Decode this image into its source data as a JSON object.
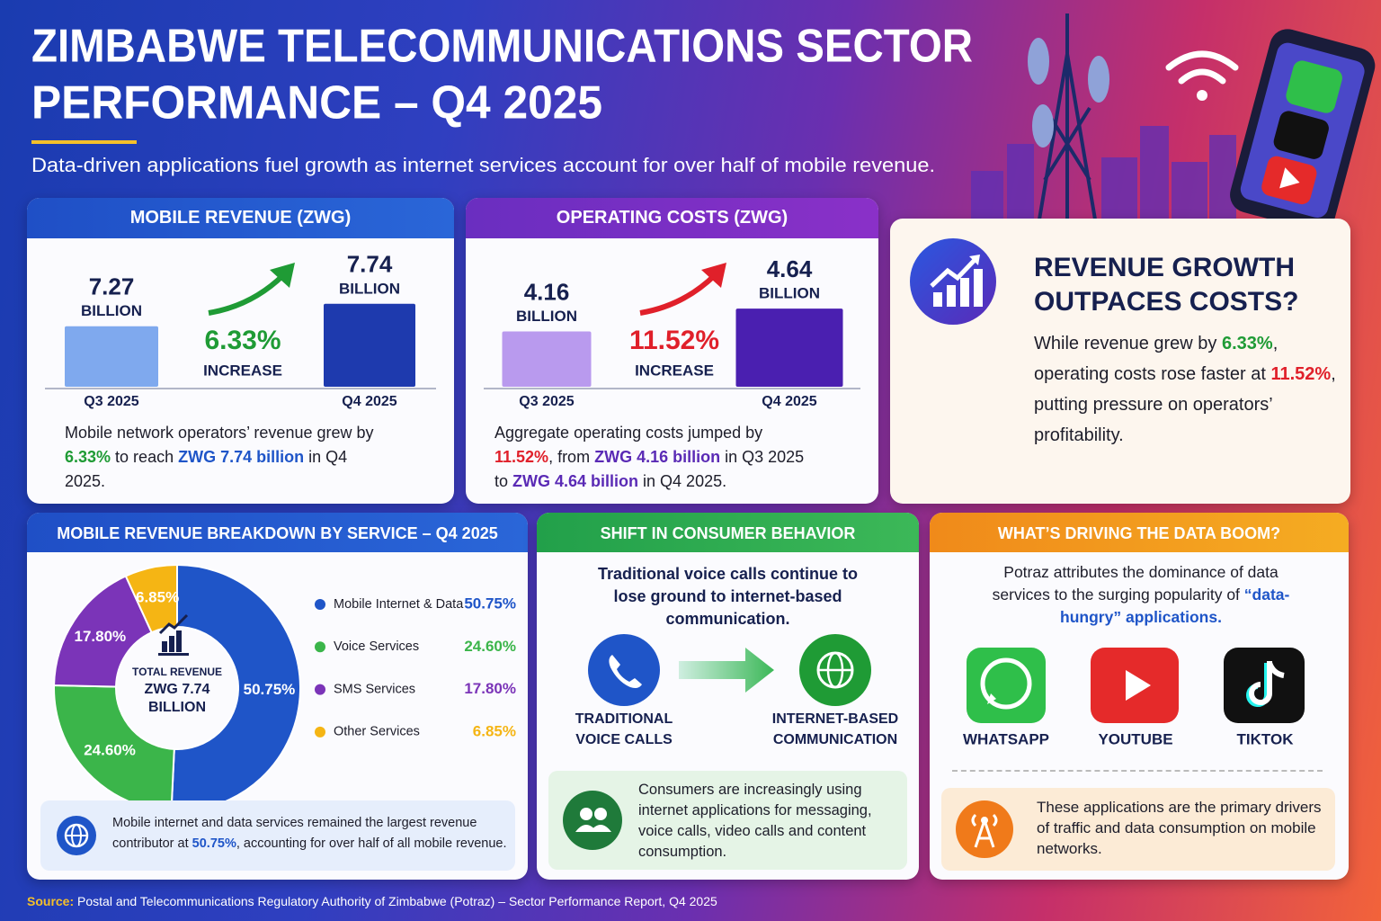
{
  "header": {
    "title_lines": [
      "ZIMBABWE TELECOMMUNICATIONS SECTOR",
      "PERFORMANCE – Q4 2025"
    ],
    "subtitle": "Data-driven applications fuel growth as internet services account for over half of mobile revenue."
  },
  "chart_data": [
    {
      "type": "bar",
      "title": "MOBILE REVENUE (ZWG)",
      "categories": [
        "Q3 2025",
        "Q4 2025"
      ],
      "values": [
        7.27,
        7.74
      ],
      "unit": "BILLION",
      "colors": [
        "#7fa9ee",
        "#1e3aae"
      ],
      "ylim": [
        6,
        8
      ],
      "change": "6.33%",
      "change_color": "#1f9b35",
      "change_note": "INCREASE",
      "description": [
        {
          "text": "Mobile network operators’ revenue grew by "
        },
        {
          "text": "6.33%",
          "color": "#1f9b35"
        },
        {
          "text": " to reach "
        },
        {
          "text": "ZWG 7.74 billion",
          "color": "#1f55c8"
        },
        {
          "text": " in Q4 2025."
        }
      ]
    },
    {
      "type": "bar",
      "title": "OPERATING COSTS (ZWG)",
      "categories": [
        "Q3 2025",
        "Q4 2025"
      ],
      "values": [
        4.16,
        4.64
      ],
      "unit": "BILLION",
      "colors": [
        "#b99aee",
        "#4a1fb0"
      ],
      "ylim": [
        3,
        5
      ],
      "change": "11.52%",
      "change_color": "#e0202a",
      "change_note": "INCREASE",
      "description": [
        {
          "text": "Aggregate operating costs jumped by "
        },
        {
          "text": "11.52%",
          "color": "#e0202a"
        },
        {
          "text": ", from "
        },
        {
          "text": "ZWG 4.16 billion",
          "color": "#5a2ab5"
        },
        {
          "text": " in Q3 2025 to "
        },
        {
          "text": "ZWG 4.64 billion",
          "color": "#5a2ab5"
        },
        {
          "text": " in Q4 2025."
        }
      ]
    },
    {
      "type": "pie",
      "title": "MOBILE REVENUE BREAKDOWN BY SERVICE – Q4 2025",
      "categories": [
        "Mobile Internet & Data",
        "Voice Services",
        "SMS Services",
        "Other Services"
      ],
      "values": [
        50.75,
        24.6,
        17.8,
        6.85
      ],
      "value_labels": [
        "50.75%",
        "24.60%",
        "17.80%",
        "6.85%"
      ],
      "colors": [
        "#1f55c8",
        "#3bb54a",
        "#7b34b8",
        "#f5b514"
      ],
      "center_lines": [
        "TOTAL REVENUE",
        "ZWG 7.74",
        "BILLION"
      ],
      "note": [
        {
          "text": "Mobile internet and data services remained the largest revenue contributor at "
        },
        {
          "text": "50.75%",
          "color": "#1f55c8"
        },
        {
          "text": ", accounting for over half of all mobile revenue."
        }
      ]
    }
  ],
  "insight": {
    "title_lines": [
      "REVENUE GROWTH",
      "OUTPACES COSTS?"
    ],
    "text": [
      {
        "text": "While revenue grew by "
      },
      {
        "text": "6.33%",
        "color": "#1f9b35"
      },
      {
        "text": ", operating costs rose faster at "
      },
      {
        "text": "11.52%",
        "color": "#e0202a"
      },
      {
        "text": ", putting pressure on operators’ profitability."
      }
    ]
  },
  "behavior": {
    "title": "SHIFT IN CONSUMER BEHAVIOR",
    "lead": "Traditional voice calls continue to lose ground to internet-based communication.",
    "from_lines": [
      "TRADITIONAL",
      "VOICE CALLS"
    ],
    "to_lines": [
      "INTERNET-BASED",
      "COMMUNICATION"
    ],
    "note": "Consumers are increasingly using internet applications for messaging, voice calls, video calls and content consumption."
  },
  "drivers": {
    "title": "WHAT’S DRIVING THE DATA BOOM?",
    "intro": [
      {
        "text": "Potraz attributes the dominance of data services to the surging popularity of "
      },
      {
        "text": "“data-hungry” applications.",
        "color": "#1f55c8"
      }
    ],
    "apps": [
      "WHATSAPP",
      "YOUTUBE",
      "TIKTOK"
    ],
    "note": "These applications are the primary drivers of traffic and data consumption on mobile networks."
  },
  "source": {
    "label": "Source:",
    "text": "Postal and Telecommunications Regulatory Authority of Zimbabwe (Potraz) – Sector Performance Report, Q4 2025"
  }
}
